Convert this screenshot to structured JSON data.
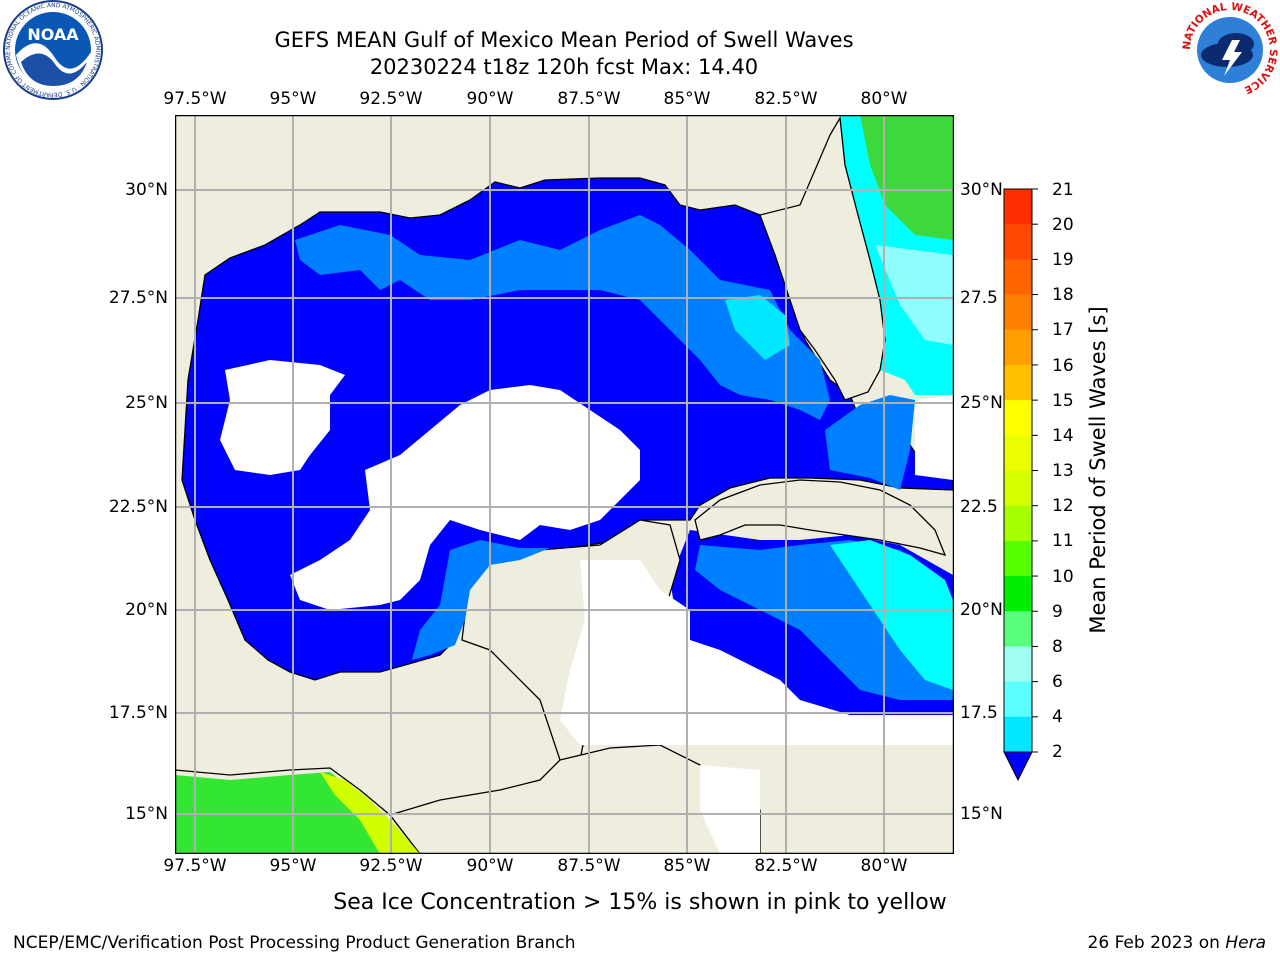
{
  "titles": {
    "line1": "GEFS MEAN Gulf of Mexico Mean Period of Swell Waves",
    "line2": "20230224 t18z 120h fcst   Max: 14.40"
  },
  "map": {
    "lon_labels": [
      "97.5°W",
      "95°W",
      "92.5°W",
      "90°W",
      "87.5°W",
      "85°W",
      "82.5°W",
      "80°W"
    ],
    "lat_labels_left": [
      "30°N",
      "27.5°N",
      "25°N",
      "22.5°N",
      "20°N",
      "17.5°N",
      "15°N"
    ],
    "lat_labels_right": [
      "30°N",
      "27.5",
      "25°N",
      "22.5",
      "20°N",
      "17.5",
      "15°N"
    ],
    "colors": {
      "land": "#efedde",
      "no_data": "#ffffff",
      "grid": "#b0b0b0"
    }
  },
  "colorbar": {
    "label": "Mean Period of Swell Waves [s]",
    "ticks": [
      "21",
      "20",
      "19",
      "18",
      "17",
      "16",
      "15",
      "14",
      "13",
      "12",
      "11",
      "10",
      "9",
      "8",
      "6",
      "4",
      "2"
    ],
    "colors": [
      "#ff2d00",
      "#ff4800",
      "#ff6400",
      "#ff8000",
      "#ffa000",
      "#ffc000",
      "#ffff00",
      "#ecff00",
      "#d8ff00",
      "#a8ff00",
      "#58ff00",
      "#00ee00",
      "#58ff78",
      "#a0fff0",
      "#5cffff",
      "#00e8ff",
      "#0080ff"
    ],
    "under_color": "#0000ff"
  },
  "caption": "Sea Ice Concentration > 15% is shown in pink to yellow",
  "footer": {
    "left": "NCEP/EMC/Verification Post Processing Product Generation Branch",
    "date": "26 Feb 2023 on ",
    "host": "Hera"
  },
  "logos": {
    "noaa_text": "NOAA",
    "noaa_ring": "NATIONAL OCEANIC AND ATMOSPHERIC ADMINISTRATION · U.S. DEPARTMENT OF COMMERCE",
    "nws_ring": "NATIONAL WEATHER SERVICE"
  }
}
